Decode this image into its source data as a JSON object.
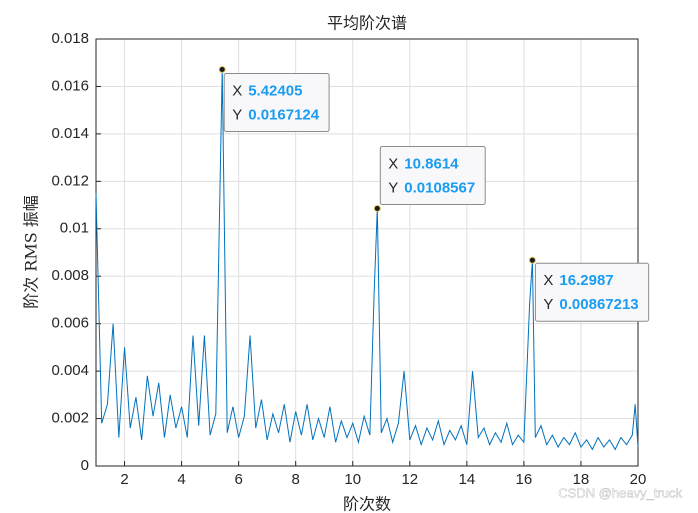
{
  "chart_data": {
    "type": "line",
    "title": "平均阶次谱",
    "x_label": "阶次数",
    "y_label": "阶次 RMS 振幅",
    "watermark": "CSDN @heavy_truck",
    "x": [
      1,
      1.2,
      1.4,
      1.6,
      1.8,
      2,
      2.2,
      2.4,
      2.6,
      2.8,
      3,
      3.2,
      3.4,
      3.6,
      3.8,
      4,
      4.2,
      4.4,
      4.6,
      4.8,
      5,
      5.2,
      5.42405,
      5.6,
      5.8,
      6,
      6.2,
      6.4,
      6.6,
      6.8,
      7,
      7.2,
      7.4,
      7.6,
      7.8,
      8,
      8.2,
      8.4,
      8.6,
      8.8,
      9,
      9.2,
      9.4,
      9.6,
      9.8,
      10,
      10.2,
      10.4,
      10.6,
      10.75,
      10.8614,
      11,
      11.2,
      11.4,
      11.6,
      11.8,
      12,
      12.2,
      12.4,
      12.6,
      12.8,
      13,
      13.2,
      13.4,
      13.6,
      13.8,
      14,
      14.2,
      14.4,
      14.6,
      14.8,
      15,
      15.2,
      15.4,
      15.6,
      15.8,
      16,
      16.2,
      16.2987,
      16.4,
      16.6,
      16.8,
      17,
      17.2,
      17.4,
      17.6,
      17.8,
      18,
      18.2,
      18.4,
      18.6,
      18.8,
      19,
      19.2,
      19.4,
      19.6,
      19.8,
      19.9,
      20
    ],
    "series": [
      {
        "color": "#0072bd",
        "values": [
          0.0115,
          0.0018,
          0.0026,
          0.006,
          0.0012,
          0.005,
          0.0016,
          0.0029,
          0.0011,
          0.0038,
          0.0021,
          0.0035,
          0.0012,
          0.003,
          0.0016,
          0.0025,
          0.0012,
          0.0055,
          0.0017,
          0.0055,
          0.0013,
          0.0022,
          0.0167124,
          0.0014,
          0.0025,
          0.0012,
          0.0021,
          0.0055,
          0.0016,
          0.0028,
          0.0011,
          0.0022,
          0.0014,
          0.0026,
          0.001,
          0.0023,
          0.0013,
          0.0026,
          0.0011,
          0.002,
          0.0012,
          0.0025,
          0.001,
          0.0019,
          0.0012,
          0.0018,
          0.001,
          0.0021,
          0.0013,
          0.0073,
          0.0108567,
          0.0014,
          0.002,
          0.001,
          0.0018,
          0.004,
          0.0011,
          0.0017,
          0.0009,
          0.0016,
          0.0011,
          0.0019,
          0.0009,
          0.0015,
          0.0011,
          0.0017,
          0.0009,
          0.004,
          0.0012,
          0.0016,
          0.0009,
          0.0014,
          0.001,
          0.0018,
          0.0009,
          0.0013,
          0.001,
          0.0068,
          0.00867213,
          0.0012,
          0.0017,
          0.0009,
          0.0013,
          0.0008,
          0.0012,
          0.0009,
          0.0014,
          0.0008,
          0.0011,
          0.0007,
          0.0012,
          0.0008,
          0.0011,
          0.0007,
          0.0012,
          0.0009,
          0.0013,
          0.0026,
          0.0008
        ]
      }
    ],
    "xlim": [
      1,
      20
    ],
    "ylim": [
      0,
      0.018
    ],
    "xticks": [
      2,
      4,
      6,
      8,
      10,
      12,
      14,
      16,
      18,
      20
    ],
    "yticks": [
      0,
      0.002,
      0.004,
      0.006,
      0.008,
      0.01,
      0.012,
      0.014,
      0.016,
      0.018
    ],
    "grid": true,
    "datatip_labels": [
      "X",
      "Y"
    ],
    "annotations": [
      {
        "x": 5.42405,
        "y": 0.0167124
      },
      {
        "x": 10.8614,
        "y": 0.0108567
      },
      {
        "x": 16.2987,
        "y": 0.00867213
      }
    ]
  }
}
